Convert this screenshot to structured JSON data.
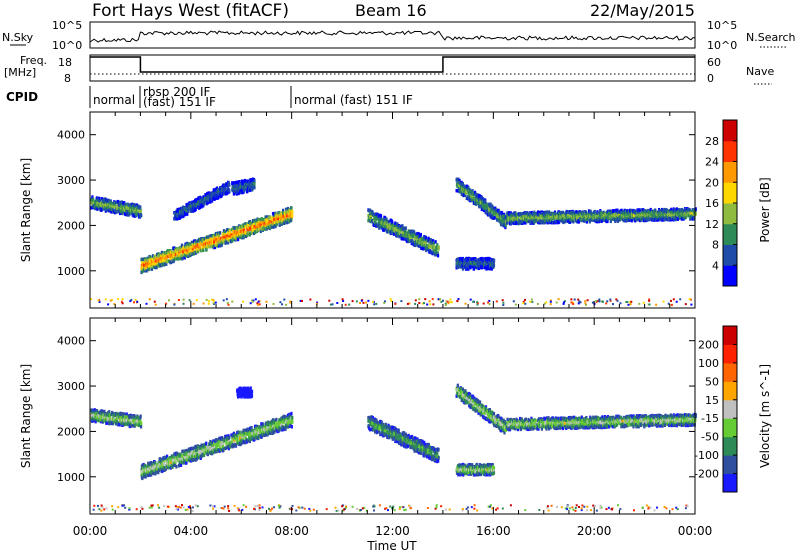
{
  "header": {
    "station": "Fort Hays West (fitACF)",
    "beam": "Beam 16",
    "date": "22/May/2015"
  },
  "side_labels": {
    "nsky": "N.Sky",
    "nsearch": "N.Search",
    "freq": "Freq.",
    "freq_unit": "[MHz]",
    "nave": "Nave",
    "cpid": "CPID"
  },
  "noise_axis": {
    "left_ticks": [
      "10^5",
      "10^0"
    ],
    "right_ticks": [
      "10^5",
      "10^0"
    ]
  },
  "freq_axis": {
    "left_ticks": [
      "18",
      "8"
    ],
    "right_ticks": [
      "60",
      "0"
    ]
  },
  "cpid_segments": [
    {
      "label": "normal",
      "start_hr": 0,
      "end_hr": 2
    },
    {
      "label": "rbsp 200 IF",
      "label2": "(fast) 151 IF",
      "start_hr": 2,
      "end_hr": 8
    },
    {
      "label": "normal (fast) 151 IF",
      "start_hr": 8,
      "end_hr": 24
    }
  ],
  "chart_data": [
    {
      "type": "heatmap",
      "name": "power",
      "ylabel": "Slant Range [km]",
      "ylim": [
        180,
        4500
      ],
      "yticks": [
        1000,
        2000,
        3000,
        4000
      ],
      "xlim": [
        0,
        24
      ],
      "colorbar": {
        "label": "Power [dB]",
        "ticks": [
          "4",
          "8",
          "12",
          "16",
          "20",
          "24",
          "28"
        ],
        "colors": [
          "#0000ff",
          "#1f4ca8",
          "#2e8b57",
          "#8fbc3f",
          "#ffd700",
          "#ff9900",
          "#ff3300",
          "#cc0000"
        ]
      },
      "echo_bands": [
        {
          "t0": 0.0,
          "t1": 2.0,
          "r0": 2500,
          "r1": 2300,
          "w": 260,
          "level": 0.45
        },
        {
          "t0": 2.0,
          "t1": 8.0,
          "r0": 1100,
          "r1": 2250,
          "w": 300,
          "level": 0.8
        },
        {
          "t0": 3.3,
          "t1": 5.5,
          "r0": 2200,
          "r1": 2850,
          "w": 230,
          "level": 0.25
        },
        {
          "t0": 5.6,
          "t1": 6.5,
          "r0": 2800,
          "r1": 2900,
          "w": 260,
          "level": 0.25
        },
        {
          "t0": 11.0,
          "t1": 13.8,
          "r0": 2200,
          "r1": 1450,
          "w": 300,
          "level": 0.45
        },
        {
          "t0": 14.5,
          "t1": 16.5,
          "r0": 2900,
          "r1": 2050,
          "w": 280,
          "level": 0.4
        },
        {
          "t0": 16.5,
          "t1": 24.0,
          "r0": 2150,
          "r1": 2250,
          "w": 240,
          "level": 0.45
        },
        {
          "t0": 14.5,
          "t1": 16.0,
          "r0": 1150,
          "r1": 1150,
          "w": 230,
          "level": 0.25
        }
      ]
    },
    {
      "type": "heatmap",
      "name": "velocity",
      "ylabel": "Slant Range [km]",
      "ylim": [
        180,
        4500
      ],
      "yticks": [
        1000,
        2000,
        3000,
        4000
      ],
      "xlim": [
        0,
        24
      ],
      "xlabel": "Time UT",
      "xticks": [
        "00:00",
        "04:00",
        "08:00",
        "12:00",
        "16:00",
        "20:00",
        "00:00"
      ],
      "colorbar": {
        "label": "Velocity [m s^-1]",
        "ticks": [
          "200",
          "100",
          "50",
          "15",
          "-15",
          "-50",
          "-100",
          "-200"
        ],
        "colors": [
          "#1a1aff",
          "#2f4f9f",
          "#2e8b57",
          "#66cc33",
          "#c0c0c0",
          "#ffa500",
          "#ff6600",
          "#ff2200",
          "#cc0000"
        ]
      },
      "echo_bands": [
        {
          "t0": 0.0,
          "t1": 2.0,
          "r0": 2350,
          "r1": 2200,
          "w": 260,
          "level": 0.5
        },
        {
          "t0": 2.0,
          "t1": 8.0,
          "r0": 1100,
          "r1": 2250,
          "w": 300,
          "level": 0.5
        },
        {
          "t0": 5.8,
          "t1": 6.4,
          "r0": 2850,
          "r1": 2850,
          "w": 200,
          "level": 0.0
        },
        {
          "t0": 11.0,
          "t1": 13.8,
          "r0": 2200,
          "r1": 1450,
          "w": 300,
          "level": 0.35
        },
        {
          "t0": 14.5,
          "t1": 16.5,
          "r0": 2900,
          "r1": 2050,
          "w": 280,
          "level": 0.5
        },
        {
          "t0": 16.5,
          "t1": 24.0,
          "r0": 2150,
          "r1": 2250,
          "w": 240,
          "level": 0.5
        },
        {
          "t0": 14.5,
          "t1": 16.0,
          "r0": 1150,
          "r1": 1150,
          "w": 230,
          "level": 0.5
        }
      ]
    }
  ]
}
